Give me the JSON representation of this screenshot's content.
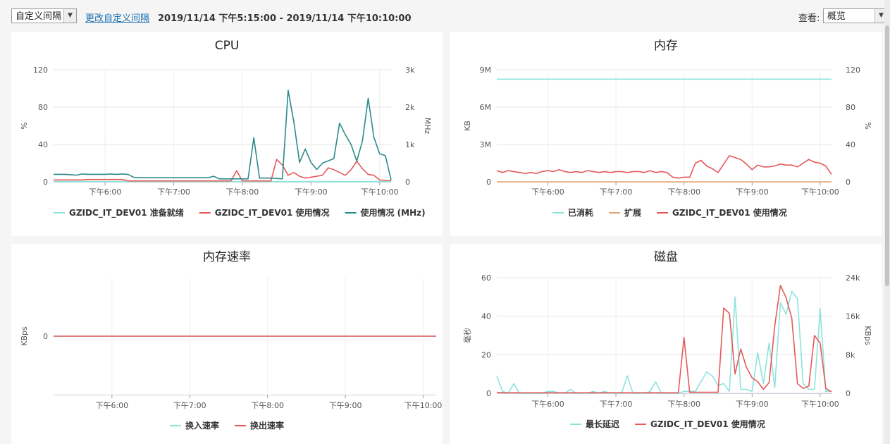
{
  "toolbar": {
    "interval_select": "自定义间隔",
    "change_link": "更改自定义间隔",
    "range": "2019/11/14 下午5:15:00 - 2019/11/14 下午10:10:00",
    "view_label": "查看:",
    "view_select": "概览"
  },
  "colors": {
    "teal_light": "#8de4dc",
    "red": "#e5595b",
    "teal_dark": "#2a8b8a",
    "orange": "#e8a36d"
  },
  "chart_data": [
    {
      "id": "cpu",
      "type": "line",
      "title": "CPU",
      "xlim": [
        0,
        295
      ],
      "x_ticks": [
        {
          "v": 45,
          "label": "下午6:00"
        },
        {
          "v": 105,
          "label": "下午7:00"
        },
        {
          "v": 165,
          "label": "下午8:00"
        },
        {
          "v": 225,
          "label": "下午9:00"
        },
        {
          "v": 285,
          "label": "下午10:00"
        }
      ],
      "left_axis": {
        "label": "%",
        "ylim": [
          0,
          120
        ],
        "ticks": [
          0,
          40,
          80,
          120
        ],
        "tick_labels": [
          "0",
          "40",
          "80",
          "120"
        ]
      },
      "right_axis": {
        "label": "MHz",
        "ylim": [
          0,
          3000
        ],
        "ticks": [
          0,
          1000,
          2000,
          3000
        ],
        "tick_labels": [
          "0",
          "1k",
          "2k",
          "3k"
        ]
      },
      "series": [
        {
          "name": "GZIDC_IT_DEV01 准备就绪",
          "axis": "left",
          "color": "#8de4dc",
          "x": [
            0,
            295
          ],
          "y": [
            0.3,
            0.3
          ]
        },
        {
          "name": "GZIDC_IT_DEV01 使用情况",
          "axis": "left",
          "color": "#e5595b",
          "x": [
            0,
            5,
            10,
            15,
            20,
            25,
            30,
            35,
            40,
            45,
            50,
            55,
            60,
            65,
            70,
            75,
            80,
            85,
            90,
            95,
            100,
            105,
            110,
            115,
            120,
            125,
            130,
            135,
            140,
            145,
            150,
            155,
            160,
            165,
            170,
            175,
            180,
            185,
            190,
            195,
            200,
            205,
            210,
            215,
            220,
            225,
            230,
            235,
            240,
            245,
            250,
            255,
            260,
            265,
            270,
            275,
            280,
            285,
            290,
            295
          ],
          "y": [
            2,
            2,
            2,
            2,
            2,
            2,
            2.5,
            2.5,
            2.5,
            2.5,
            2.5,
            2.5,
            2.5,
            1,
            1,
            1,
            1,
            1,
            1,
            1,
            1,
            1,
            1,
            1,
            1,
            1,
            1,
            1,
            1,
            1,
            1,
            1,
            12,
            1,
            1,
            1,
            1,
            1,
            1,
            24,
            18,
            7,
            10,
            6,
            4,
            5,
            6,
            7,
            15,
            13,
            10,
            7,
            13,
            22,
            14,
            8,
            7,
            2,
            1.5,
            1.5
          ]
        },
        {
          "name": "使用情况 (MHz)",
          "axis": "right",
          "color": "#2a8b8a",
          "x": [
            0,
            5,
            10,
            15,
            20,
            25,
            30,
            35,
            40,
            45,
            50,
            55,
            60,
            65,
            70,
            75,
            80,
            85,
            90,
            95,
            100,
            105,
            110,
            115,
            120,
            125,
            130,
            135,
            140,
            145,
            150,
            155,
            160,
            165,
            170,
            175,
            180,
            185,
            190,
            195,
            200,
            205,
            210,
            215,
            220,
            225,
            230,
            235,
            240,
            245,
            250,
            255,
            260,
            265,
            270,
            275,
            280,
            285,
            290,
            295
          ],
          "y": [
            200,
            200,
            200,
            190,
            180,
            210,
            200,
            200,
            200,
            200,
            210,
            200,
            210,
            200,
            120,
            110,
            110,
            110,
            110,
            110,
            110,
            110,
            110,
            110,
            110,
            110,
            110,
            110,
            150,
            80,
            80,
            80,
            80,
            80,
            80,
            1180,
            100,
            100,
            100,
            90,
            80,
            2450,
            1600,
            520,
            880,
            520,
            330,
            500,
            560,
            620,
            1570,
            1260,
            1000,
            550,
            1100,
            2240,
            1190,
            750,
            700,
            50
          ]
        }
      ],
      "legend": [
        "GZIDC_IT_DEV01 准备就绪",
        "GZIDC_IT_DEV01 使用情况",
        "使用情况 (MHz)"
      ]
    },
    {
      "id": "memory",
      "type": "line",
      "title": "内存",
      "xlim": [
        0,
        295
      ],
      "x_ticks": [
        {
          "v": 45,
          "label": "下午6:00"
        },
        {
          "v": 105,
          "label": "下午7:00"
        },
        {
          "v": 165,
          "label": "下午8:00"
        },
        {
          "v": 225,
          "label": "下午9:00"
        },
        {
          "v": 285,
          "label": "下午10:00"
        }
      ],
      "left_axis": {
        "label": "KB",
        "ylim": [
          0,
          9000000
        ],
        "ticks": [
          0,
          3000000,
          6000000,
          9000000
        ],
        "tick_labels": [
          "0",
          "3M",
          "6M",
          "9M"
        ]
      },
      "right_axis": {
        "label": "%",
        "ylim": [
          0,
          120
        ],
        "ticks": [
          0,
          40,
          80,
          120
        ],
        "tick_labels": [
          "0",
          "40",
          "80",
          "120"
        ]
      },
      "series": [
        {
          "name": "已消耗",
          "axis": "left",
          "color": "#8de4dc",
          "x": [
            0,
            295
          ],
          "y": [
            8250000,
            8250000
          ]
        },
        {
          "name": "扩展",
          "axis": "left",
          "color": "#e8a36d",
          "x": [
            0,
            295
          ],
          "y": [
            0,
            0
          ]
        },
        {
          "name": "GZIDC_IT_DEV01 使用情况",
          "axis": "right",
          "color": "#e5595b",
          "x": [
            0,
            5,
            10,
            15,
            20,
            25,
            30,
            35,
            40,
            45,
            50,
            55,
            60,
            65,
            70,
            75,
            80,
            85,
            90,
            95,
            100,
            105,
            110,
            115,
            120,
            125,
            130,
            135,
            140,
            145,
            150,
            155,
            160,
            165,
            170,
            175,
            180,
            185,
            190,
            195,
            200,
            205,
            210,
            215,
            220,
            225,
            230,
            235,
            240,
            245,
            250,
            255,
            260,
            265,
            270,
            275,
            280,
            285,
            290,
            295
          ],
          "y": [
            12,
            10,
            12,
            11,
            10,
            9,
            10,
            9,
            11,
            12,
            11,
            13,
            11,
            10,
            11,
            10,
            12,
            11,
            10,
            11,
            10,
            11,
            11,
            10,
            11,
            11,
            10,
            12,
            10,
            11,
            10,
            5,
            4,
            5,
            5,
            20,
            23,
            17,
            14,
            10,
            19,
            28,
            26,
            24,
            19,
            13,
            18,
            16,
            16,
            17,
            19,
            18,
            18,
            16,
            20,
            24,
            21,
            20,
            17,
            8
          ]
        }
      ],
      "legend": [
        "已消耗",
        "扩展",
        "GZIDC_IT_DEV01 使用情况"
      ]
    },
    {
      "id": "memory-rate",
      "type": "line",
      "title": "内存速率",
      "xlim": [
        0,
        295
      ],
      "x_ticks": [
        {
          "v": 45,
          "label": "下午6:00"
        },
        {
          "v": 105,
          "label": "下午7:00"
        },
        {
          "v": 165,
          "label": "下午8:00"
        },
        {
          "v": 225,
          "label": "下午9:00"
        },
        {
          "v": 285,
          "label": "下午10:00"
        }
      ],
      "left_axis": {
        "label": "KBps",
        "ylim": [
          -1,
          1
        ],
        "ticks": [
          0
        ],
        "tick_labels": [
          "0"
        ]
      },
      "series": [
        {
          "name": "换入速率",
          "axis": "left",
          "color": "#8de4dc",
          "x": [
            0,
            295
          ],
          "y": [
            0,
            0
          ]
        },
        {
          "name": "换出速率",
          "axis": "left",
          "color": "#e5595b",
          "x": [
            0,
            295
          ],
          "y": [
            0,
            0
          ]
        }
      ],
      "legend": [
        "换入速率",
        "换出速率"
      ]
    },
    {
      "id": "disk",
      "type": "line",
      "title": "磁盘",
      "xlim": [
        0,
        295
      ],
      "x_ticks": [
        {
          "v": 45,
          "label": "下午6:00"
        },
        {
          "v": 105,
          "label": "下午7:00"
        },
        {
          "v": 165,
          "label": "下午8:00"
        },
        {
          "v": 225,
          "label": "下午9:00"
        },
        {
          "v": 285,
          "label": "下午10:00"
        }
      ],
      "left_axis": {
        "label": "毫秒",
        "ylim": [
          0,
          60
        ],
        "ticks": [
          0,
          20,
          40,
          60
        ],
        "tick_labels": [
          "0",
          "20",
          "40",
          "60"
        ]
      },
      "right_axis": {
        "label": "KBps",
        "ylim": [
          0,
          24000
        ],
        "ticks": [
          0,
          8000,
          16000,
          24000
        ],
        "tick_labels": [
          "0",
          "8k",
          "16k",
          "24k"
        ]
      },
      "series": [
        {
          "name": "最长延迟",
          "axis": "left",
          "color": "#8de4dc",
          "x": [
            0,
            5,
            10,
            15,
            20,
            25,
            30,
            35,
            40,
            45,
            50,
            55,
            60,
            65,
            70,
            75,
            80,
            85,
            90,
            95,
            100,
            105,
            110,
            115,
            120,
            125,
            130,
            135,
            140,
            145,
            150,
            155,
            160,
            165,
            170,
            175,
            180,
            185,
            190,
            195,
            200,
            205,
            210,
            215,
            220,
            225,
            230,
            235,
            240,
            245,
            250,
            255,
            260,
            265,
            270,
            275,
            280,
            285,
            290,
            295
          ],
          "y": [
            9,
            1,
            0,
            5,
            0,
            0,
            0,
            0,
            0,
            1,
            1,
            0,
            0,
            2,
            0,
            0,
            0,
            1,
            0,
            1,
            0,
            0,
            0,
            9,
            0,
            0,
            0,
            1,
            6,
            0,
            0,
            0,
            0,
            1,
            1,
            1,
            6,
            11,
            9,
            4,
            5,
            1,
            50,
            2,
            2,
            1,
            21,
            5,
            26,
            3,
            47,
            41,
            53,
            49,
            5,
            2,
            2,
            44,
            1,
            1
          ]
        },
        {
          "name": "GZIDC_IT_DEV01 使用情况",
          "axis": "right",
          "color": "#e5595b",
          "x": [
            0,
            5,
            10,
            15,
            20,
            25,
            30,
            35,
            40,
            45,
            50,
            55,
            60,
            65,
            70,
            75,
            80,
            85,
            90,
            95,
            100,
            105,
            110,
            115,
            120,
            125,
            130,
            135,
            140,
            145,
            150,
            155,
            160,
            165,
            170,
            175,
            180,
            185,
            190,
            195,
            200,
            205,
            210,
            215,
            220,
            225,
            230,
            235,
            240,
            245,
            250,
            255,
            260,
            265,
            270,
            275,
            280,
            285,
            290,
            295
          ],
          "y": [
            200,
            100,
            100,
            100,
            100,
            100,
            100,
            100,
            100,
            100,
            100,
            100,
            100,
            100,
            100,
            100,
            100,
            100,
            100,
            100,
            100,
            100,
            100,
            100,
            100,
            100,
            100,
            100,
            100,
            100,
            100,
            100,
            100,
            11600,
            200,
            200,
            200,
            200,
            200,
            200,
            17700,
            16600,
            4000,
            9200,
            5400,
            3200,
            2400,
            800,
            2200,
            14000,
            22400,
            19800,
            15600,
            2000,
            1000,
            1500,
            12000,
            10400,
            1000,
            300
          ]
        }
      ],
      "legend": [
        "最长延迟",
        "GZIDC_IT_DEV01 使用情况"
      ]
    }
  ]
}
